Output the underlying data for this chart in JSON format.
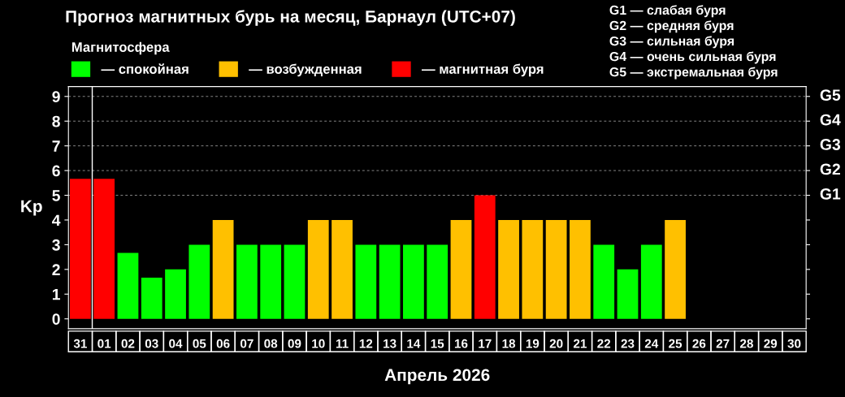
{
  "chart_data": {
    "type": "bar",
    "title": "Прогноз магнитных бурь на месяц, Барнаул (UTC+07)",
    "xlabel": "Апрель 2026",
    "ylabel": "Kp",
    "legend_title": "Магнитосфера",
    "legend": "top left",
    "categories": [
      "31",
      "01",
      "02",
      "03",
      "04",
      "05",
      "06",
      "07",
      "08",
      "09",
      "10",
      "11",
      "12",
      "13",
      "14",
      "15",
      "16",
      "17",
      "18",
      "19",
      "20",
      "21",
      "22",
      "23",
      "24",
      "25",
      "26",
      "27",
      "28",
      "29",
      "30"
    ],
    "series": [
      {
        "name": "— спокойная",
        "color": "#00ff00",
        "values": [
          null,
          null,
          2.67,
          1.67,
          2,
          3,
          null,
          3,
          3,
          3,
          null,
          null,
          3,
          3,
          3,
          3,
          null,
          null,
          null,
          null,
          null,
          null,
          3,
          2,
          3,
          null,
          null,
          null,
          null,
          null,
          null
        ]
      },
      {
        "name": "— возбужденная",
        "color": "#ffc000",
        "values": [
          null,
          null,
          null,
          null,
          null,
          null,
          4,
          null,
          null,
          null,
          4,
          4,
          null,
          null,
          null,
          null,
          4,
          null,
          4,
          4,
          4,
          4,
          null,
          null,
          null,
          4,
          null,
          null,
          null,
          null,
          null
        ]
      },
      {
        "name": "— магнитная буря",
        "color": "#ff0000",
        "values": [
          5.67,
          5.67,
          null,
          null,
          null,
          null,
          null,
          null,
          null,
          null,
          null,
          null,
          null,
          null,
          null,
          null,
          null,
          5,
          null,
          null,
          null,
          null,
          null,
          null,
          null,
          null,
          null,
          null,
          null,
          null,
          null
        ]
      }
    ],
    "ylim": [
      -0.4,
      9.4
    ],
    "yticks": [
      0,
      1,
      2,
      3,
      4,
      5,
      6,
      7,
      8,
      9
    ],
    "ref_lines": [
      {
        "axis": "x",
        "value": "01",
        "color": "#ffffff",
        "line_style": "solid"
      },
      {
        "axis": "y",
        "value": 5,
        "label": "G1",
        "color": "#888888",
        "line_style": "dashed"
      },
      {
        "axis": "y",
        "value": 6,
        "label": "G2",
        "color": "#888888",
        "line_style": "dashed"
      },
      {
        "axis": "y",
        "value": 7,
        "label": "G3",
        "color": "#888888",
        "line_style": "dashed"
      },
      {
        "axis": "y",
        "value": 8,
        "label": "G4",
        "color": "#888888",
        "line_style": "dashed"
      },
      {
        "axis": "y",
        "value": 9,
        "label": "G5",
        "color": "#888888",
        "line_style": "dashed"
      }
    ],
    "annotations": [
      "G1 — слабая буря",
      "G2 — средняя буря",
      "G3 — сильная буря",
      "G4 — очень сильная буря",
      "G5 — экстремальная буря"
    ]
  }
}
